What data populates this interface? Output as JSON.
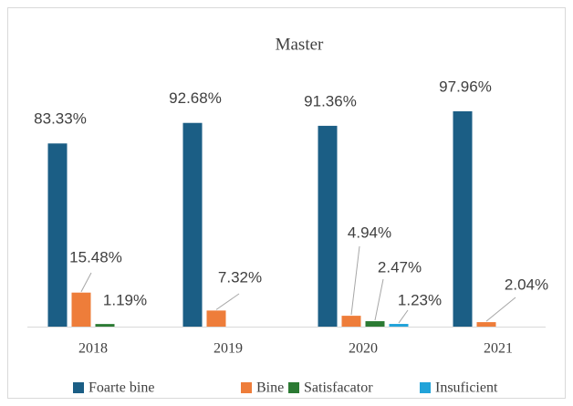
{
  "chart_data": {
    "type": "bar",
    "title": "Master",
    "categories": [
      "2018",
      "2019",
      "2020",
      "2021"
    ],
    "series": [
      {
        "name": "Foarte bine",
        "color": "#1b5e85",
        "values": [
          83.33,
          92.68,
          91.36,
          97.96
        ],
        "value_labels": [
          "83.33%",
          "92.68%",
          "91.36%",
          "97.96%"
        ]
      },
      {
        "name": "Bine",
        "color": "#ee7d3a",
        "values": [
          15.48,
          7.32,
          4.94,
          2.04
        ],
        "value_labels": [
          "15.48%",
          "7.32%",
          "4.94%",
          "2.04%"
        ]
      },
      {
        "name": "Satisfacator",
        "color": "#2b7a33",
        "values": [
          1.19,
          null,
          2.47,
          null
        ],
        "value_labels": [
          "1.19%",
          null,
          "2.47%",
          null
        ]
      },
      {
        "name": "Insuficient",
        "color": "#21a3d9",
        "values": [
          null,
          null,
          1.23,
          null
        ],
        "value_labels": [
          null,
          null,
          "1.23%",
          null
        ]
      }
    ],
    "legend": "bottom"
  }
}
